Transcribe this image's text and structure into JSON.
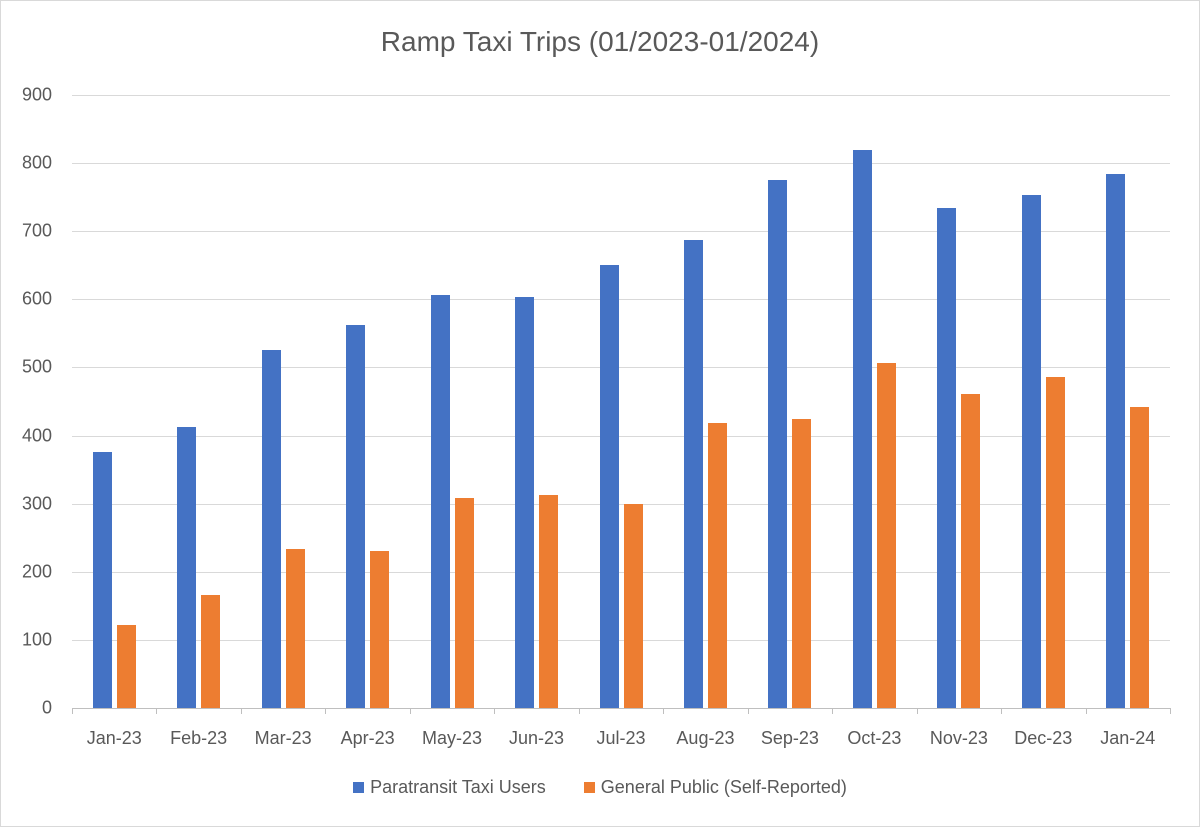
{
  "chart_data": {
    "type": "bar",
    "title": "Ramp Taxi Trips (01/2023-01/2024)",
    "xlabel": "",
    "ylabel": "",
    "ylim": [
      0,
      900
    ],
    "yticks": [
      0,
      100,
      200,
      300,
      400,
      500,
      600,
      700,
      800,
      900
    ],
    "grid": true,
    "legend_position": "bottom",
    "categories": [
      "Jan-23",
      "Feb-23",
      "Mar-23",
      "Apr-23",
      "May-23",
      "Jun-23",
      "Jul-23",
      "Aug-23",
      "Sep-23",
      "Oct-23",
      "Nov-23",
      "Dec-23",
      "Jan-24"
    ],
    "series": [
      {
        "name": "Paratransit Taxi Users",
        "color": "#4472c4",
        "values": [
          376,
          413,
          525,
          563,
          606,
          603,
          651,
          687,
          775,
          820,
          734,
          753,
          784
        ]
      },
      {
        "name": "General Public (Self-Reported)",
        "color": "#ed7d31",
        "values": [
          122,
          166,
          234,
          230,
          309,
          313,
          299,
          418,
          424,
          506,
          461,
          486,
          442
        ]
      }
    ]
  }
}
